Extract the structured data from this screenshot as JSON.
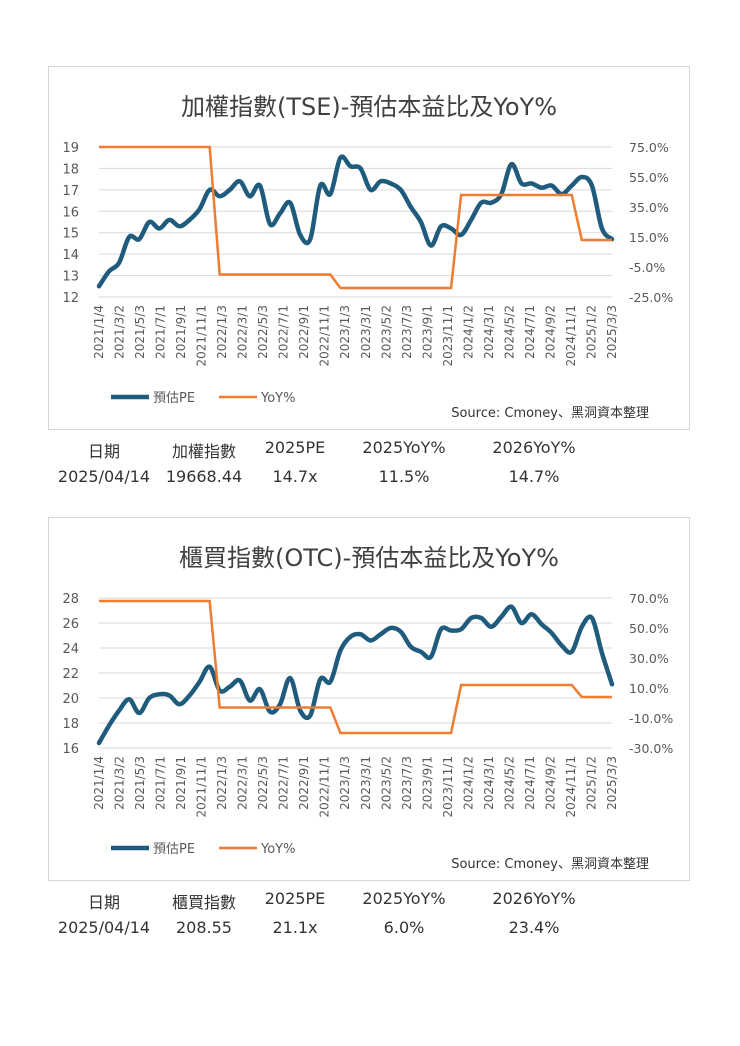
{
  "chart_data": [
    {
      "type": "line",
      "title": "加權指數(TSE)-預估本益比及YoY%",
      "source": "Source: Cmoney、黑洞資本整理",
      "x_ticks": [
        "2021/1/4",
        "2021/3/2",
        "2021/5/3",
        "2021/7/1",
        "2021/9/1",
        "2021/11/1",
        "2022/1/3",
        "2022/3/1",
        "2022/5/3",
        "2022/7/1",
        "2022/9/1",
        "2022/11/1",
        "2023/1/3",
        "2023/3/1",
        "2023/5/2",
        "2023/7/3",
        "2023/9/1",
        "2023/11/1",
        "2024/1/2",
        "2024/3/1",
        "2024/5/2",
        "2024/7/1",
        "2024/9/2",
        "2024/11/1",
        "2025/1/2",
        "2025/3/3"
      ],
      "y_left": {
        "ticks": [
          "19",
          "18",
          "17",
          "16",
          "15",
          "14",
          "13",
          "12"
        ],
        "min": 12,
        "max": 19
      },
      "y_right": {
        "ticks": [
          "75.0%",
          "55.0%",
          "35.0%",
          "15.0%",
          "-5.0%",
          "-25.0%"
        ],
        "min": -25,
        "max": 75
      },
      "series": [
        {
          "name": "預估PE",
          "axis": "left",
          "color": "#1f5b7c",
          "values": [
            12.5,
            13.2,
            13.6,
            14.8,
            14.7,
            15.5,
            15.2,
            15.6,
            15.3,
            15.6,
            16.1,
            17.0,
            16.7,
            17.0,
            17.4,
            16.7,
            17.2,
            15.4,
            15.9,
            16.4,
            14.9,
            14.7,
            17.2,
            16.8,
            18.5,
            18.1,
            18.0,
            17.0,
            17.4,
            17.3,
            17.0,
            16.2,
            15.5,
            14.4,
            15.3,
            15.2,
            14.9,
            15.6,
            16.4,
            16.4,
            16.8,
            18.2,
            17.3,
            17.3,
            17.1,
            17.2,
            16.8,
            17.2,
            17.6,
            17.2,
            15.2,
            14.7
          ]
        },
        {
          "name": "YoY%",
          "axis": "right",
          "color": "#ed7d31",
          "values": [
            75,
            75,
            75,
            75,
            75,
            75,
            75,
            75,
            75,
            75,
            75,
            75,
            -10,
            -10,
            -10,
            -10,
            -10,
            -10,
            -10,
            -10,
            -10,
            -10,
            -10,
            -10,
            -19,
            -19,
            -19,
            -19,
            -19,
            -19,
            -19,
            -19,
            -19,
            -19,
            -19,
            -19,
            43,
            43,
            43,
            43,
            43,
            43,
            43,
            43,
            43,
            43,
            43,
            43,
            13,
            13,
            13,
            13
          ]
        }
      ],
      "legend": [
        "預估PE",
        "YoY%"
      ]
    },
    {
      "type": "line",
      "title": "櫃買指數(OTC)-預估本益比及YoY%",
      "source": "Source: Cmoney、黑洞資本整理",
      "x_ticks": [
        "2021/1/4",
        "2021/3/2",
        "2021/5/3",
        "2021/7/1",
        "2021/9/1",
        "2021/11/1",
        "2022/1/3",
        "2022/3/1",
        "2022/5/3",
        "2022/7/1",
        "2022/9/1",
        "2022/11/1",
        "2023/1/3",
        "2023/3/1",
        "2023/5/2",
        "2023/7/3",
        "2023/9/1",
        "2023/11/1",
        "2024/1/2",
        "2024/3/1",
        "2024/5/2",
        "2024/7/1",
        "2024/9/2",
        "2024/11/1",
        "2025/1/2",
        "2025/3/3"
      ],
      "y_left": {
        "ticks": [
          "28",
          "26",
          "24",
          "22",
          "20",
          "18",
          "16"
        ],
        "min": 16,
        "max": 28
      },
      "y_right": {
        "ticks": [
          "70.0%",
          "50.0%",
          "30.0%",
          "10.0%",
          "-10.0%",
          "-30.0%"
        ],
        "min": -30,
        "max": 70
      },
      "series": [
        {
          "name": "預估PE",
          "axis": "left",
          "color": "#1f5b7c",
          "values": [
            16.4,
            17.8,
            19.0,
            19.9,
            18.8,
            20.0,
            20.3,
            20.2,
            19.5,
            20.2,
            21.3,
            22.5,
            20.6,
            20.9,
            21.4,
            19.8,
            20.7,
            18.9,
            19.5,
            21.6,
            19.0,
            18.6,
            21.5,
            21.3,
            23.8,
            24.9,
            25.1,
            24.6,
            25.1,
            25.6,
            25.3,
            24.1,
            23.7,
            23.3,
            25.5,
            25.4,
            25.5,
            26.4,
            26.4,
            25.7,
            26.5,
            27.3,
            26.0,
            26.7,
            25.9,
            25.2,
            24.2,
            23.7,
            25.7,
            26.4,
            23.6,
            21.1
          ]
        },
        {
          "name": "YoY%",
          "axis": "right",
          "color": "#ed7d31",
          "values": [
            68,
            68,
            68,
            68,
            68,
            68,
            68,
            68,
            68,
            68,
            68,
            68,
            -3,
            -3,
            -3,
            -3,
            -3,
            -3,
            -3,
            -3,
            -3,
            -3,
            -3,
            -3,
            -20,
            -20,
            -20,
            -20,
            -20,
            -20,
            -20,
            -20,
            -20,
            -20,
            -20,
            -20,
            12,
            12,
            12,
            12,
            12,
            12,
            12,
            12,
            12,
            12,
            12,
            12,
            4,
            4,
            4,
            4
          ]
        }
      ],
      "legend": [
        "預估PE",
        "YoY%"
      ]
    }
  ],
  "summary1": {
    "headers": [
      "日期",
      "加權指數",
      "2025PE",
      "2025YoY%",
      "2026YoY%"
    ],
    "values": [
      "2025/04/14",
      "19668.44",
      "14.7x",
      "11.5%",
      "14.7%"
    ]
  },
  "summary2": {
    "headers": [
      "日期",
      "櫃買指數",
      "2025PE",
      "2025YoY%",
      "2026YoY%"
    ],
    "values": [
      "2025/04/14",
      "208.55",
      "21.1x",
      "6.0%",
      "23.4%"
    ]
  }
}
